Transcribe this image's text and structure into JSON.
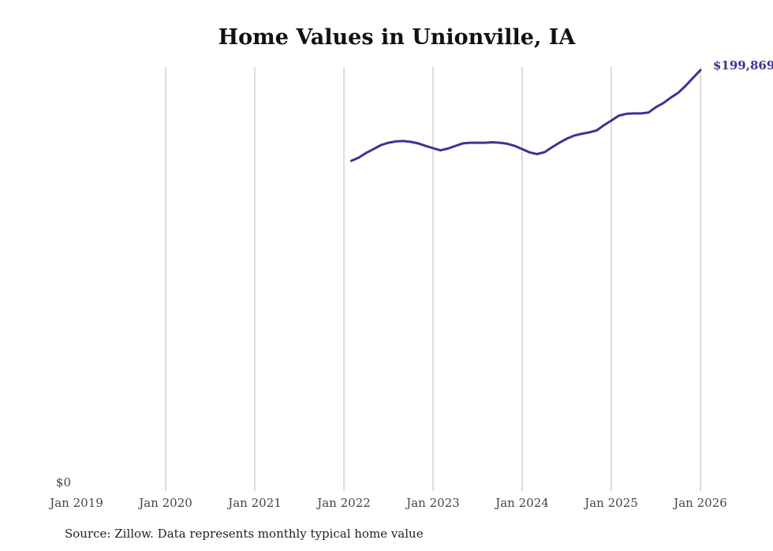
{
  "chart_data": {
    "type": "line",
    "title": "Home Values in Unionville, IA",
    "source": "Source: Zillow. Data represents monthly typical home value",
    "xlabel": "",
    "ylabel": "",
    "x_ticks": [
      "Jan 2019",
      "Jan 2020",
      "Jan 2021",
      "Jan 2022",
      "Jan 2023",
      "Jan 2024",
      "Jan 2025",
      "Jan 2026"
    ],
    "y_ticks": [
      "$0"
    ],
    "ylim": [
      0,
      200000
    ],
    "xlim": [
      "2019-01",
      "2026-01"
    ],
    "grid": "vertical",
    "line_color": "#3d3393",
    "end_label": "$199,869",
    "series": [
      {
        "name": "Typical home value",
        "start": "2022-02",
        "values": [
          156800,
          158300,
          160600,
          162400,
          164300,
          165400,
          166000,
          166200,
          165800,
          165100,
          163900,
          162800,
          161800,
          162600,
          163900,
          165100,
          165400,
          165400,
          165400,
          165600,
          165400,
          164900,
          163900,
          162400,
          160800,
          160000,
          160900,
          163200,
          165400,
          167300,
          168800,
          169600,
          170300,
          171200,
          173700,
          175900,
          178200,
          179100,
          179300,
          179300,
          179700,
          182300,
          184200,
          186800,
          189100,
          192400,
          196200,
          199869
        ]
      }
    ]
  }
}
